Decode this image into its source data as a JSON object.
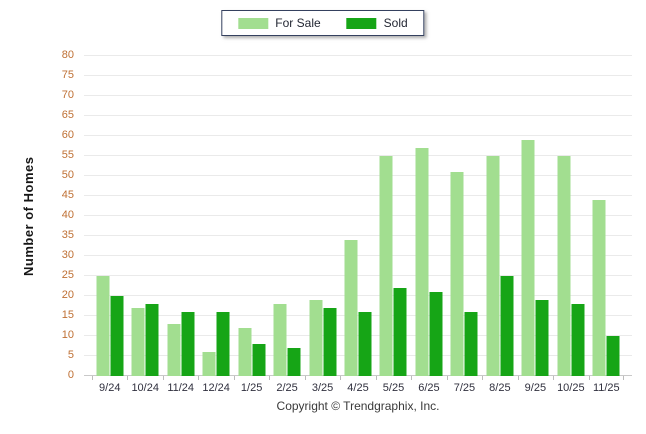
{
  "legend": {
    "for_sale_label": "For Sale",
    "sold_label": "Sold"
  },
  "footer": {
    "copyright": "Copyright © Trendgraphix, Inc."
  },
  "colors": {
    "for_sale": "#a2de90",
    "sold": "#16a516",
    "grid": "#eaeaea",
    "baseline": "#c9c9c9",
    "y_tick_text": "#bf7034",
    "x_tick_text": "#30303e",
    "legend_border": "#35415f"
  },
  "chart_data": {
    "type": "bar",
    "title": "",
    "xlabel": "",
    "ylabel": "Number of Homes",
    "ylim": [
      0,
      80
    ],
    "ytick_step": 5,
    "grid": "horizontal",
    "legend_position": "top-center",
    "categories": [
      "9/24",
      "10/24",
      "11/24",
      "12/24",
      "1/25",
      "2/25",
      "3/25",
      "4/25",
      "5/25",
      "6/25",
      "7/25",
      "8/25",
      "9/25",
      "10/25",
      "11/25"
    ],
    "series": [
      {
        "name": "For Sale",
        "values": [
          25,
          17,
          13,
          6,
          12,
          18,
          19,
          34,
          55,
          57,
          51,
          55,
          59,
          55,
          44
        ]
      },
      {
        "name": "Sold",
        "values": [
          20,
          18,
          16,
          16,
          8,
          7,
          17,
          16,
          22,
          21,
          16,
          25,
          19,
          18,
          10
        ]
      }
    ]
  }
}
